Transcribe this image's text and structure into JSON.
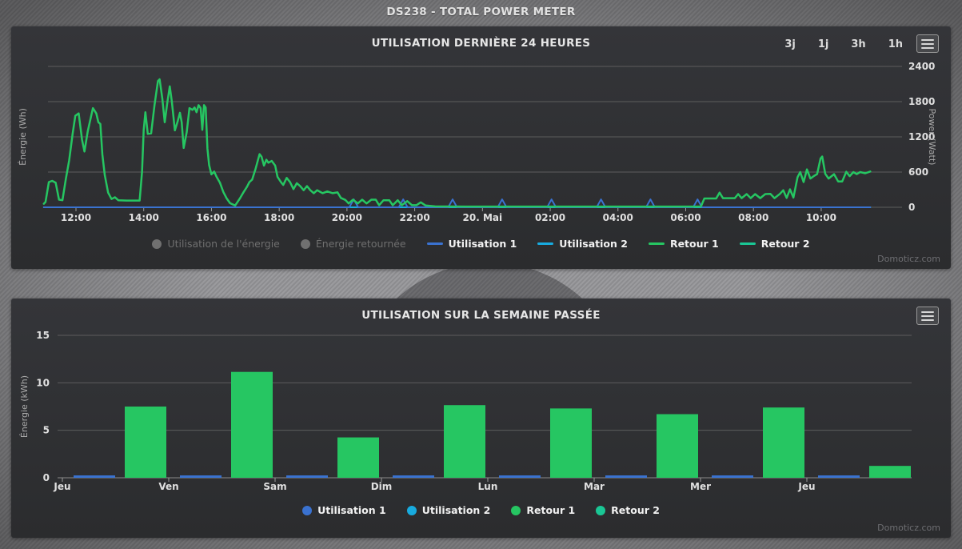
{
  "header": {
    "title": "DS238 - TOTAL POWER METER"
  },
  "watermark": "Domoticz.com",
  "chart1": {
    "range_buttons": [
      "3j",
      "1j",
      "3h",
      "1h"
    ]
  },
  "colors": {
    "utilisation1": "#3a72d0",
    "utilisation2": "#18abdf",
    "retour1": "#26c662",
    "retour2": "#1ac795",
    "disabled_legend": "#707070"
  },
  "chart_data": [
    {
      "type": "line",
      "title": "UTILISATION DERNIÈRE 24 HEURES",
      "ylabel_left": "Énergie (Wh)",
      "ylabel_right": "Power (Watt)",
      "y_ticks": [
        0,
        600,
        1200,
        1800,
        2400
      ],
      "ylim": [
        0,
        2400
      ],
      "x_tick_hours": [
        12,
        14,
        16,
        18,
        20,
        22,
        24,
        26,
        28,
        30,
        32,
        34
      ],
      "x_tick_labels": [
        "12:00",
        "14:00",
        "16:00",
        "18:00",
        "20:00",
        "22:00",
        "20. Mai",
        "02:00",
        "04:00",
        "06:00",
        "08:00",
        "10:00"
      ],
      "x_range_hours": [
        11.05,
        35.45
      ],
      "grid": true,
      "series": [
        {
          "name": "Retour 2",
          "color": "#1ac795",
          "width": 2,
          "points": [
            [
              11.05,
              0
            ],
            [
              35.45,
              0
            ]
          ]
        },
        {
          "name": "Utilisation 2",
          "color": "#18abdf",
          "width": 2,
          "points": [
            [
              11.05,
              0
            ],
            [
              35.45,
              0
            ]
          ]
        },
        {
          "name": "Utilisation 1",
          "color": "#3a72d0",
          "width": 2,
          "spike_hours": [
            20.2,
            21.66,
            23.12,
            24.58,
            26.04,
            27.5,
            28.96,
            30.35
          ],
          "spike_height": 135,
          "spike_halfwidth": 0.13
        },
        {
          "name": "Retour 1",
          "color": "#26c662",
          "width": 2.5,
          "points": [
            [
              11.05,
              60
            ],
            [
              11.1,
              90
            ],
            [
              11.2,
              430
            ],
            [
              11.3,
              450
            ],
            [
              11.4,
              420
            ],
            [
              11.5,
              130
            ],
            [
              11.6,
              120
            ],
            [
              11.7,
              480
            ],
            [
              11.8,
              800
            ],
            [
              11.9,
              1250
            ],
            [
              11.98,
              1560
            ],
            [
              12.08,
              1600
            ],
            [
              12.18,
              1150
            ],
            [
              12.25,
              950
            ],
            [
              12.35,
              1300
            ],
            [
              12.5,
              1690
            ],
            [
              12.6,
              1600
            ],
            [
              12.66,
              1450
            ],
            [
              12.72,
              1420
            ],
            [
              12.78,
              900
            ],
            [
              12.85,
              550
            ],
            [
              12.95,
              250
            ],
            [
              13.05,
              140
            ],
            [
              13.15,
              170
            ],
            [
              13.25,
              120
            ],
            [
              13.5,
              115
            ],
            [
              13.88,
              115
            ],
            [
              13.95,
              600
            ],
            [
              14.0,
              1320
            ],
            [
              14.05,
              1620
            ],
            [
              14.12,
              1250
            ],
            [
              14.22,
              1260
            ],
            [
              14.32,
              1750
            ],
            [
              14.42,
              2150
            ],
            [
              14.47,
              2180
            ],
            [
              14.55,
              1850
            ],
            [
              14.62,
              1450
            ],
            [
              14.7,
              1800
            ],
            [
              14.77,
              2060
            ],
            [
              14.83,
              1800
            ],
            [
              14.92,
              1310
            ],
            [
              15.0,
              1460
            ],
            [
              15.07,
              1610
            ],
            [
              15.12,
              1450
            ],
            [
              15.18,
              1010
            ],
            [
              15.27,
              1280
            ],
            [
              15.35,
              1690
            ],
            [
              15.44,
              1660
            ],
            [
              15.5,
              1700
            ],
            [
              15.56,
              1620
            ],
            [
              15.62,
              1740
            ],
            [
              15.68,
              1690
            ],
            [
              15.73,
              1320
            ],
            [
              15.78,
              1740
            ],
            [
              15.83,
              1700
            ],
            [
              15.88,
              1000
            ],
            [
              15.93,
              720
            ],
            [
              16.0,
              560
            ],
            [
              16.08,
              610
            ],
            [
              16.15,
              520
            ],
            [
              16.25,
              420
            ],
            [
              16.35,
              260
            ],
            [
              16.45,
              150
            ],
            [
              16.55,
              70
            ],
            [
              16.7,
              30
            ],
            [
              16.85,
              160
            ],
            [
              16.95,
              260
            ],
            [
              17.05,
              350
            ],
            [
              17.12,
              430
            ],
            [
              17.2,
              470
            ],
            [
              17.3,
              650
            ],
            [
              17.42,
              905
            ],
            [
              17.48,
              860
            ],
            [
              17.55,
              710
            ],
            [
              17.62,
              810
            ],
            [
              17.68,
              760
            ],
            [
              17.78,
              790
            ],
            [
              17.88,
              710
            ],
            [
              17.95,
              520
            ],
            [
              18.05,
              430
            ],
            [
              18.12,
              380
            ],
            [
              18.22,
              500
            ],
            [
              18.32,
              430
            ],
            [
              18.42,
              310
            ],
            [
              18.52,
              410
            ],
            [
              18.62,
              360
            ],
            [
              18.72,
              290
            ],
            [
              18.82,
              360
            ],
            [
              18.92,
              290
            ],
            [
              19.02,
              240
            ],
            [
              19.12,
              290
            ],
            [
              19.28,
              240
            ],
            [
              19.42,
              270
            ],
            [
              19.58,
              240
            ],
            [
              19.72,
              255
            ],
            [
              19.82,
              160
            ],
            [
              19.95,
              125
            ],
            [
              20.05,
              65
            ],
            [
              20.18,
              130
            ],
            [
              20.32,
              65
            ],
            [
              20.45,
              130
            ],
            [
              20.58,
              65
            ],
            [
              20.72,
              130
            ],
            [
              20.85,
              130
            ],
            [
              20.95,
              35
            ],
            [
              21.08,
              120
            ],
            [
              21.25,
              120
            ],
            [
              21.35,
              35
            ],
            [
              21.5,
              120
            ],
            [
              21.62,
              35
            ],
            [
              21.78,
              105
            ],
            [
              21.92,
              35
            ],
            [
              22.05,
              35
            ],
            [
              22.18,
              85
            ],
            [
              22.32,
              30
            ],
            [
              22.6,
              15
            ],
            [
              23.5,
              12
            ],
            [
              25.0,
              12
            ],
            [
              26.5,
              12
            ],
            [
              28.0,
              12
            ],
            [
              29.5,
              12
            ],
            [
              30.45,
              12
            ],
            [
              30.55,
              150
            ],
            [
              30.9,
              150
            ],
            [
              31.0,
              250
            ],
            [
              31.1,
              155
            ],
            [
              31.45,
              155
            ],
            [
              31.55,
              225
            ],
            [
              31.65,
              155
            ],
            [
              31.8,
              225
            ],
            [
              31.92,
              155
            ],
            [
              32.05,
              225
            ],
            [
              32.2,
              155
            ],
            [
              32.35,
              225
            ],
            [
              32.5,
              228
            ],
            [
              32.62,
              155
            ],
            [
              32.78,
              228
            ],
            [
              32.88,
              290
            ],
            [
              32.98,
              160
            ],
            [
              33.08,
              305
            ],
            [
              33.18,
              165
            ],
            [
              33.3,
              510
            ],
            [
              33.38,
              600
            ],
            [
              33.48,
              430
            ],
            [
              33.58,
              645
            ],
            [
              33.68,
              490
            ],
            [
              33.78,
              530
            ],
            [
              33.88,
              565
            ],
            [
              33.98,
              830
            ],
            [
              34.03,
              865
            ],
            [
              34.12,
              570
            ],
            [
              34.22,
              490
            ],
            [
              34.38,
              565
            ],
            [
              34.5,
              440
            ],
            [
              34.62,
              440
            ],
            [
              34.74,
              605
            ],
            [
              34.84,
              530
            ],
            [
              34.95,
              600
            ],
            [
              35.05,
              565
            ],
            [
              35.15,
              600
            ],
            [
              35.3,
              580
            ],
            [
              35.45,
              610
            ]
          ]
        }
      ],
      "legend": [
        {
          "label": "Utilisation de l'énergie",
          "marker": "circle",
          "color": "#707070",
          "disabled": true
        },
        {
          "label": "Énergie retournée",
          "marker": "circle",
          "color": "#707070",
          "disabled": true
        },
        {
          "label": "Utilisation 1",
          "marker": "line",
          "color": "#3a72d0",
          "disabled": false
        },
        {
          "label": "Utilisation 2",
          "marker": "line",
          "color": "#18abdf",
          "disabled": false
        },
        {
          "label": "Retour 1",
          "marker": "line",
          "color": "#26c662",
          "disabled": false
        },
        {
          "label": "Retour 2",
          "marker": "line",
          "color": "#1ac795",
          "disabled": false
        }
      ]
    },
    {
      "type": "bar",
      "title": "UTILISATION SUR LA SEMAINE PASSÉE",
      "ylabel": "Énergie (kWh)",
      "y_ticks": [
        0,
        5,
        10,
        15
      ],
      "ylim": [
        0,
        15
      ],
      "grid": true,
      "categories": [
        "Jeu",
        "Ven",
        "Sam",
        "Dim",
        "Lun",
        "Mar",
        "Mer",
        "Jeu"
      ],
      "series": [
        {
          "name": "Utilisation 1",
          "color": "#3a72d0",
          "values": [
            0.25,
            0.25,
            0.25,
            0.25,
            0.25,
            0.25,
            0.25,
            0.25
          ]
        },
        {
          "name": "Utilisation 2",
          "color": "#18abdf",
          "values": [
            0,
            0,
            0,
            0,
            0,
            0,
            0,
            0
          ]
        },
        {
          "name": "Retour 1",
          "color": "#26c662",
          "values": [
            7.5,
            11.15,
            4.25,
            7.65,
            7.3,
            6.7,
            7.4,
            1.25
          ]
        },
        {
          "name": "Retour 2",
          "color": "#1ac795",
          "values": [
            0,
            0,
            0,
            0,
            0,
            0,
            0,
            0
          ]
        }
      ],
      "legend": [
        {
          "label": "Utilisation 1",
          "marker": "circle",
          "color": "#3a72d0",
          "disabled": false
        },
        {
          "label": "Utilisation 2",
          "marker": "circle",
          "color": "#18abdf",
          "disabled": false
        },
        {
          "label": "Retour 1",
          "marker": "circle",
          "color": "#26c662",
          "disabled": false
        },
        {
          "label": "Retour 2",
          "marker": "circle",
          "color": "#1ac795",
          "disabled": false
        }
      ]
    }
  ]
}
